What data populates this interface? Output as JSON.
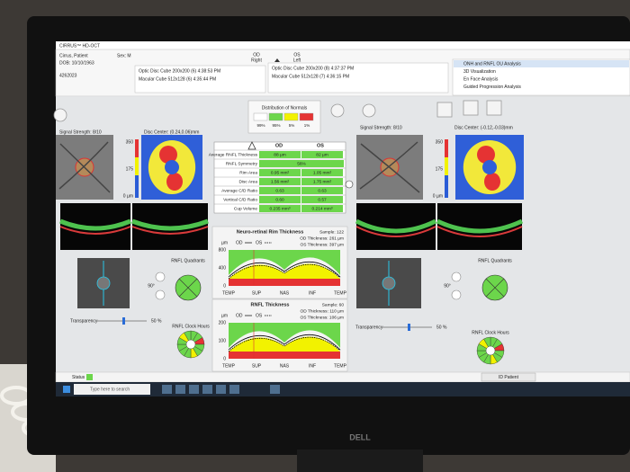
{
  "window": {
    "title": "CIRRUS™ HD-OCT"
  },
  "patient": {
    "name": "Cirrus, Patient",
    "sex": "Sex: M",
    "dob": "DOB: 10/10/1963",
    "id": "4262023"
  },
  "eyes": {
    "od": "OD",
    "od_side": "Right",
    "os": "OS",
    "os_side": "Left"
  },
  "scans": {
    "od": [
      "Optic Disc Cube 200x200 (6) 4:38:53 PM",
      "Macular Cube 512x128 (6) 4:35:44 PM"
    ],
    "os": [
      "Optic Disc Cube 200x200 (8) 4:37:37 PM",
      "Macular Cube 512x128 (7) 4:36:15 PM"
    ]
  },
  "analyses": [
    "ONH and RNFL OU Analysis",
    "3D Visualization",
    "En Face Analysis",
    "Guided Progression Analysis"
  ],
  "normals": {
    "title": "Distribution of Normals",
    "bands": [
      "99%",
      "95%",
      "5%",
      "1%"
    ]
  },
  "od_panel": {
    "signal": "Signal Strength: 8/10",
    "disc_center": "Disc Center: (0.24,0.06)mm",
    "scale": [
      "350",
      "175",
      "0 µm"
    ],
    "rotation": "90°",
    "transparency": "Transparency",
    "transparency_value": "50 %",
    "quadrants": "RNFL Quadrants",
    "clock_hours": "RNFL Clock Hours"
  },
  "os_panel": {
    "signal": "Signal Strength: 8/10",
    "disc_center": "Disc Center: (-0.12,-0.03)mm",
    "scale": [
      "350",
      "175",
      "0 µm"
    ],
    "rotation": "90°",
    "transparency": "Transparency",
    "transparency_value": "50 %",
    "quadrants": "RNFL Quadrants",
    "clock_hours": "RNFL Clock Hours"
  },
  "table": {
    "columns": [
      "OD",
      "OS"
    ],
    "rows": [
      [
        "Average RNFL Thickness",
        "88 µm",
        "82 µm"
      ],
      [
        "RNFL Symmetry",
        "56%"
      ],
      [
        "Rim Area",
        "0.95 mm²",
        "1.05 mm²"
      ],
      [
        "Disc Area",
        "1.56 mm²",
        "1.75 mm²"
      ],
      [
        "Average C/D Ratio",
        "0.63",
        "0.63"
      ],
      [
        "Vertical C/D Ratio",
        "0.60",
        "0.57"
      ],
      [
        "Cup Volume",
        "0.235 mm³",
        "0.214 mm³"
      ]
    ]
  },
  "nrr": {
    "title": "Neuro-retinal Rim Thickness",
    "unit": "µm",
    "legend": [
      "OD",
      "OS"
    ],
    "yticks": [
      "800",
      "400",
      "0"
    ],
    "xticks": [
      "TEMP",
      "SUP",
      "NAS",
      "INF",
      "TEMP"
    ],
    "sample": "Sample: 122",
    "od_value": "OD Thickness: 261 µm",
    "os_value": "OS Thickness: 397 µm"
  },
  "rnfl": {
    "title": "RNFL Thickness",
    "unit": "µm",
    "legend": [
      "OD",
      "OS"
    ],
    "yticks": [
      "200",
      "100",
      "0"
    ],
    "xticks": [
      "TEMP",
      "SUP",
      "NAS",
      "INF",
      "TEMP"
    ],
    "sample": "Sample: 60",
    "od_value": "OD Thickness: 110 µm",
    "os_value": "OS Thickness: 106 µm"
  },
  "status": {
    "label": "Status",
    "button": "ID Patient"
  },
  "taskbar": {
    "search": "Type here to search"
  },
  "monitor": {
    "brand": "DELL"
  }
}
